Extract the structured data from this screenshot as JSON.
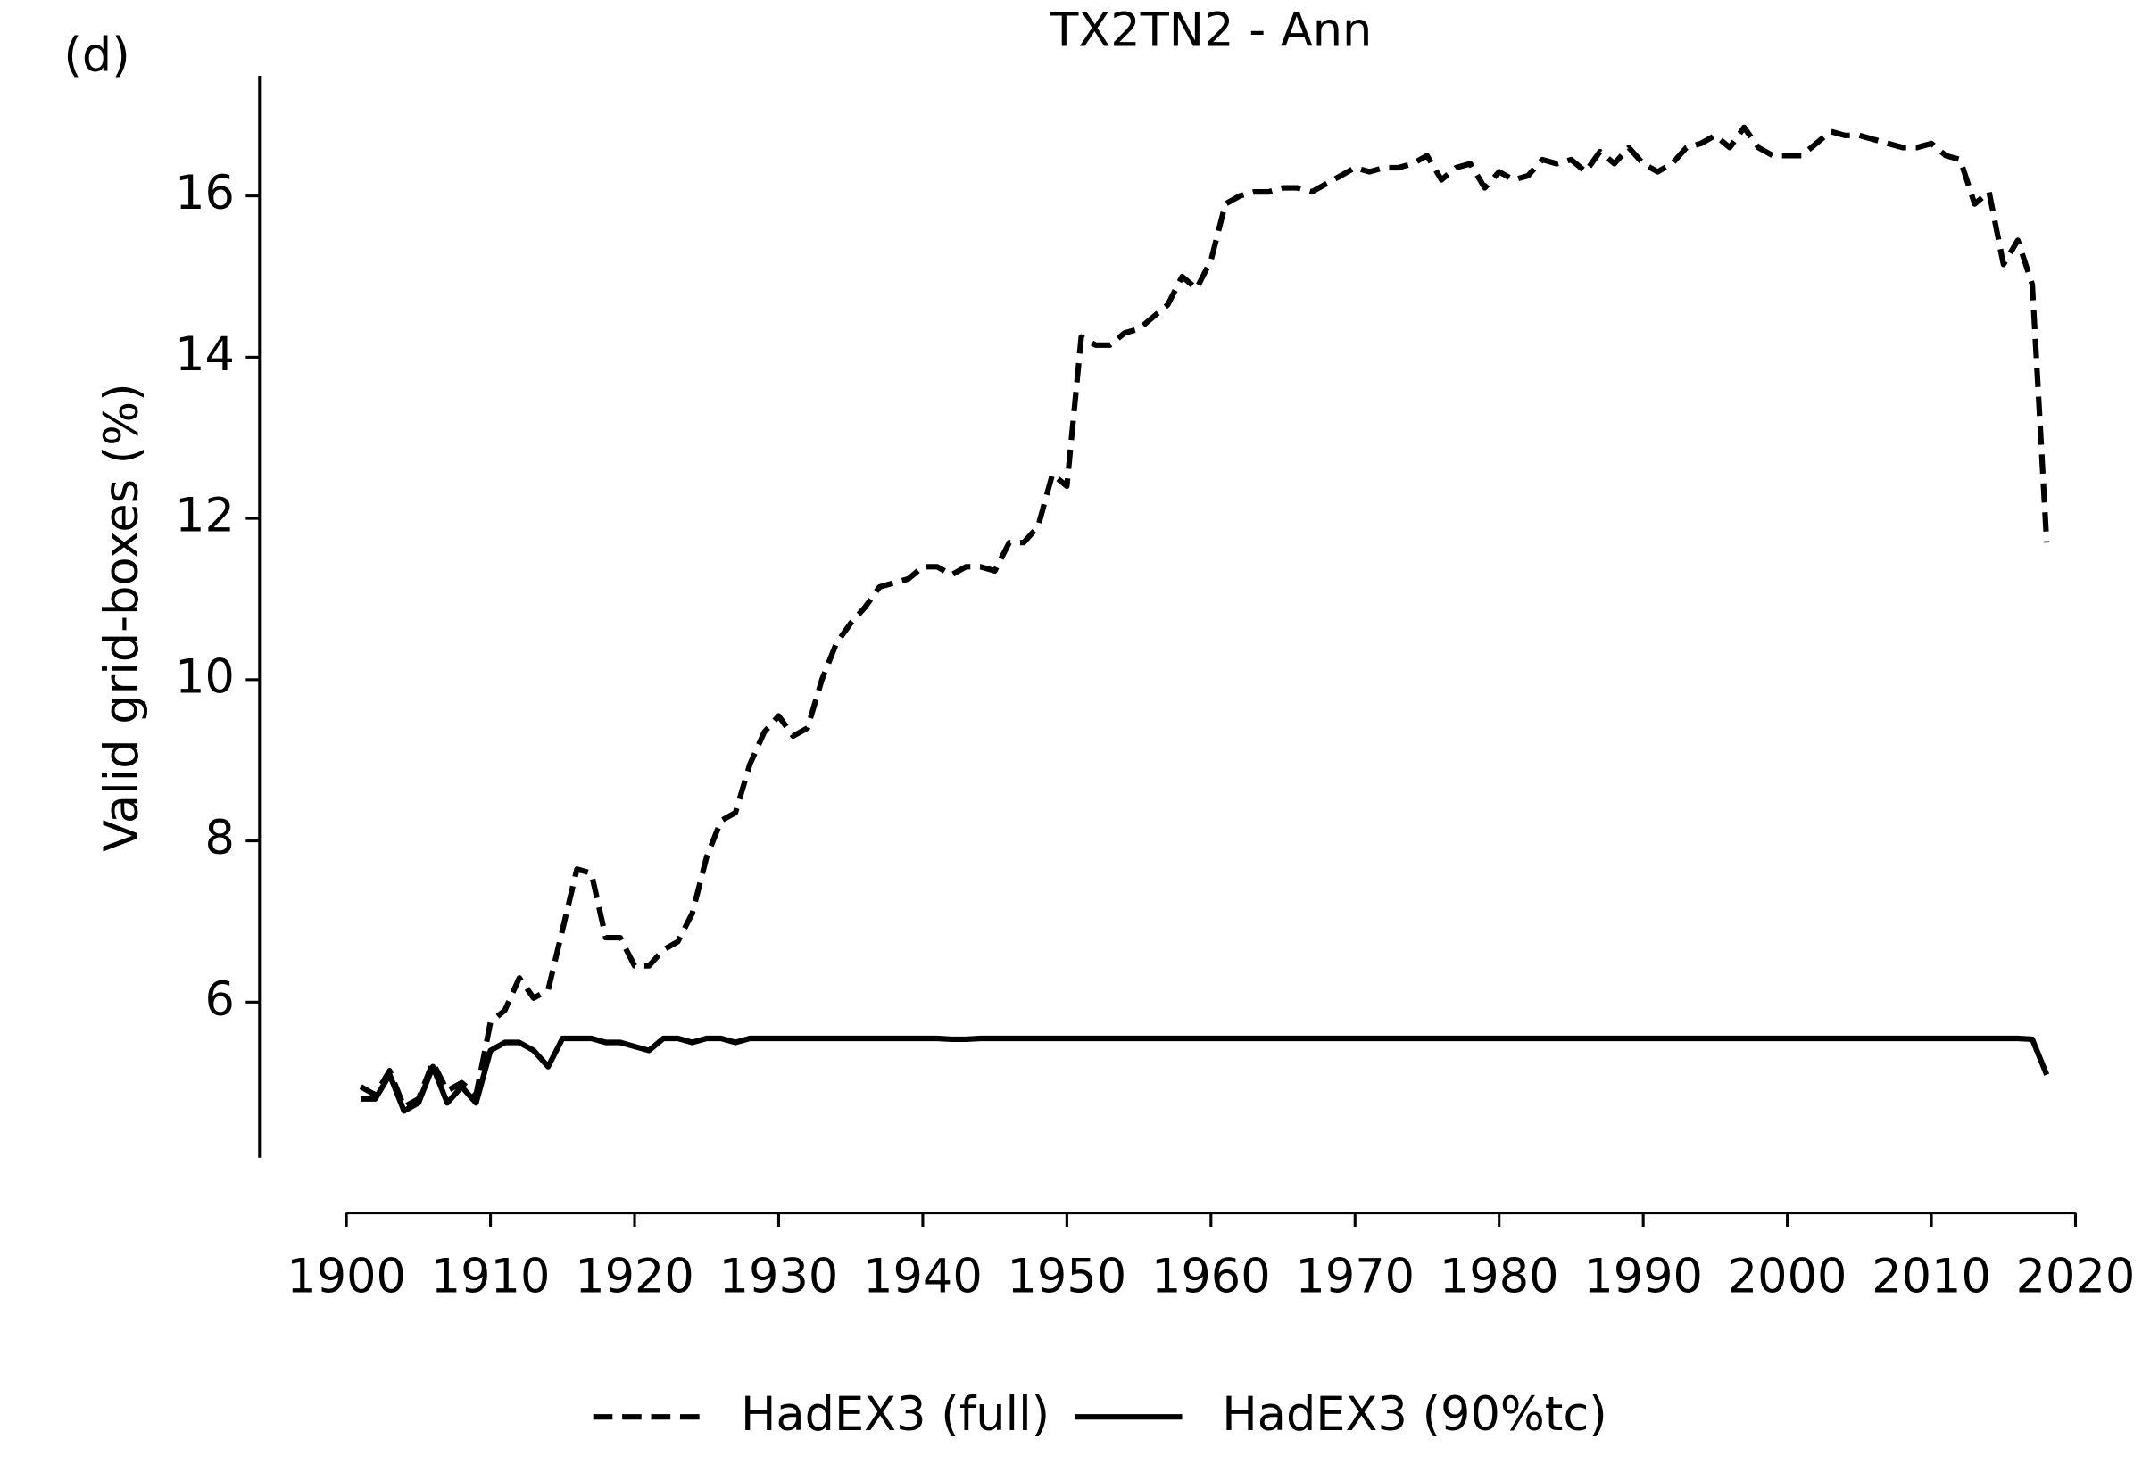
{
  "chart_data": {
    "type": "line",
    "title": "TX2TN2 - Ann",
    "panel_label": "(d)",
    "y_label": "Valid grid-boxes (%)",
    "x": [
      1901,
      1902,
      1903,
      1904,
      1905,
      1906,
      1907,
      1908,
      1909,
      1910,
      1911,
      1912,
      1913,
      1914,
      1915,
      1916,
      1917,
      1918,
      1919,
      1920,
      1921,
      1922,
      1923,
      1924,
      1925,
      1926,
      1927,
      1928,
      1929,
      1930,
      1931,
      1932,
      1933,
      1934,
      1935,
      1936,
      1937,
      1938,
      1939,
      1940,
      1941,
      1942,
      1943,
      1944,
      1945,
      1946,
      1947,
      1948,
      1949,
      1950,
      1951,
      1952,
      1953,
      1954,
      1955,
      1956,
      1957,
      1958,
      1959,
      1960,
      1961,
      1962,
      1963,
      1964,
      1965,
      1966,
      1967,
      1968,
      1969,
      1970,
      1971,
      1972,
      1973,
      1974,
      1975,
      1976,
      1977,
      1978,
      1979,
      1980,
      1981,
      1982,
      1983,
      1984,
      1985,
      1986,
      1987,
      1988,
      1989,
      1990,
      1991,
      1992,
      1993,
      1994,
      1995,
      1996,
      1997,
      1998,
      1999,
      2000,
      2001,
      2002,
      2003,
      2004,
      2005,
      2006,
      2007,
      2008,
      2009,
      2010,
      2011,
      2012,
      2013,
      2014,
      2015,
      2016,
      2017,
      2018
    ],
    "series": [
      {
        "name": "HadEX3 (full)",
        "color": "#000000",
        "dash": true,
        "values": [
          4.95,
          4.85,
          5.15,
          4.7,
          4.8,
          5.25,
          4.9,
          5.0,
          4.85,
          5.75,
          5.9,
          6.3,
          6.05,
          6.15,
          6.9,
          7.65,
          7.6,
          6.8,
          6.8,
          6.45,
          6.45,
          6.65,
          6.75,
          7.1,
          7.8,
          8.25,
          8.35,
          8.95,
          9.35,
          9.55,
          9.3,
          9.4,
          10.0,
          10.45,
          10.7,
          10.9,
          11.15,
          11.2,
          11.25,
          11.4,
          11.4,
          11.3,
          11.4,
          11.4,
          11.35,
          11.7,
          11.7,
          11.9,
          12.55,
          12.4,
          14.25,
          14.15,
          14.15,
          14.3,
          14.35,
          14.5,
          14.65,
          15.0,
          14.85,
          15.2,
          15.9,
          16.0,
          16.05,
          16.05,
          16.1,
          16.1,
          16.05,
          16.15,
          16.25,
          16.35,
          16.3,
          16.35,
          16.35,
          16.4,
          16.5,
          16.2,
          16.35,
          16.4,
          16.1,
          16.3,
          16.2,
          16.25,
          16.45,
          16.4,
          16.45,
          16.3,
          16.55,
          16.4,
          16.6,
          16.4,
          16.3,
          16.4,
          16.6,
          16.65,
          16.75,
          16.6,
          16.85,
          16.6,
          16.5,
          16.5,
          16.5,
          16.65,
          16.8,
          16.75,
          16.75,
          16.7,
          16.65,
          16.6,
          16.6,
          16.65,
          16.5,
          16.45,
          15.9,
          16.05,
          15.15,
          15.45,
          14.9,
          11.7
        ]
      },
      {
        "name": "HadEX3 (90%tc)",
        "color": "#000000",
        "dash": false,
        "values": [
          4.8,
          4.8,
          5.1,
          4.65,
          4.75,
          5.2,
          4.75,
          4.95,
          4.75,
          5.4,
          5.5,
          5.5,
          5.4,
          5.2,
          5.55,
          5.55,
          5.55,
          5.5,
          5.5,
          5.45,
          5.4,
          5.55,
          5.55,
          5.5,
          5.55,
          5.55,
          5.5,
          5.55,
          5.55,
          5.55,
          5.55,
          5.55,
          5.55,
          5.55,
          5.55,
          5.55,
          5.55,
          5.55,
          5.55,
          5.55,
          5.55,
          5.54,
          5.54,
          5.55,
          5.55,
          5.55,
          5.55,
          5.55,
          5.55,
          5.55,
          5.55,
          5.55,
          5.55,
          5.55,
          5.55,
          5.55,
          5.55,
          5.55,
          5.55,
          5.55,
          5.55,
          5.55,
          5.55,
          5.55,
          5.55,
          5.55,
          5.55,
          5.55,
          5.55,
          5.55,
          5.55,
          5.55,
          5.55,
          5.55,
          5.55,
          5.55,
          5.55,
          5.55,
          5.55,
          5.55,
          5.55,
          5.55,
          5.55,
          5.55,
          5.55,
          5.55,
          5.55,
          5.55,
          5.55,
          5.55,
          5.55,
          5.55,
          5.55,
          5.55,
          5.55,
          5.55,
          5.55,
          5.55,
          5.55,
          5.55,
          5.55,
          5.55,
          5.55,
          5.55,
          5.55,
          5.55,
          5.55,
          5.55,
          5.55,
          5.55,
          5.55,
          5.55,
          5.55,
          5.55,
          5.55,
          5.55,
          5.54,
          5.1
        ]
      }
    ],
    "xlim": [
      1900,
      2020
    ],
    "xticks": [
      1900,
      1910,
      1920,
      1930,
      1940,
      1950,
      1960,
      1970,
      1980,
      1990,
      2000,
      2010,
      2020
    ],
    "ylim": [
      4.07,
      17.49
    ],
    "yticks": [
      6,
      8,
      10,
      12,
      14,
      16
    ],
    "grid": false,
    "legend": "bottom"
  }
}
